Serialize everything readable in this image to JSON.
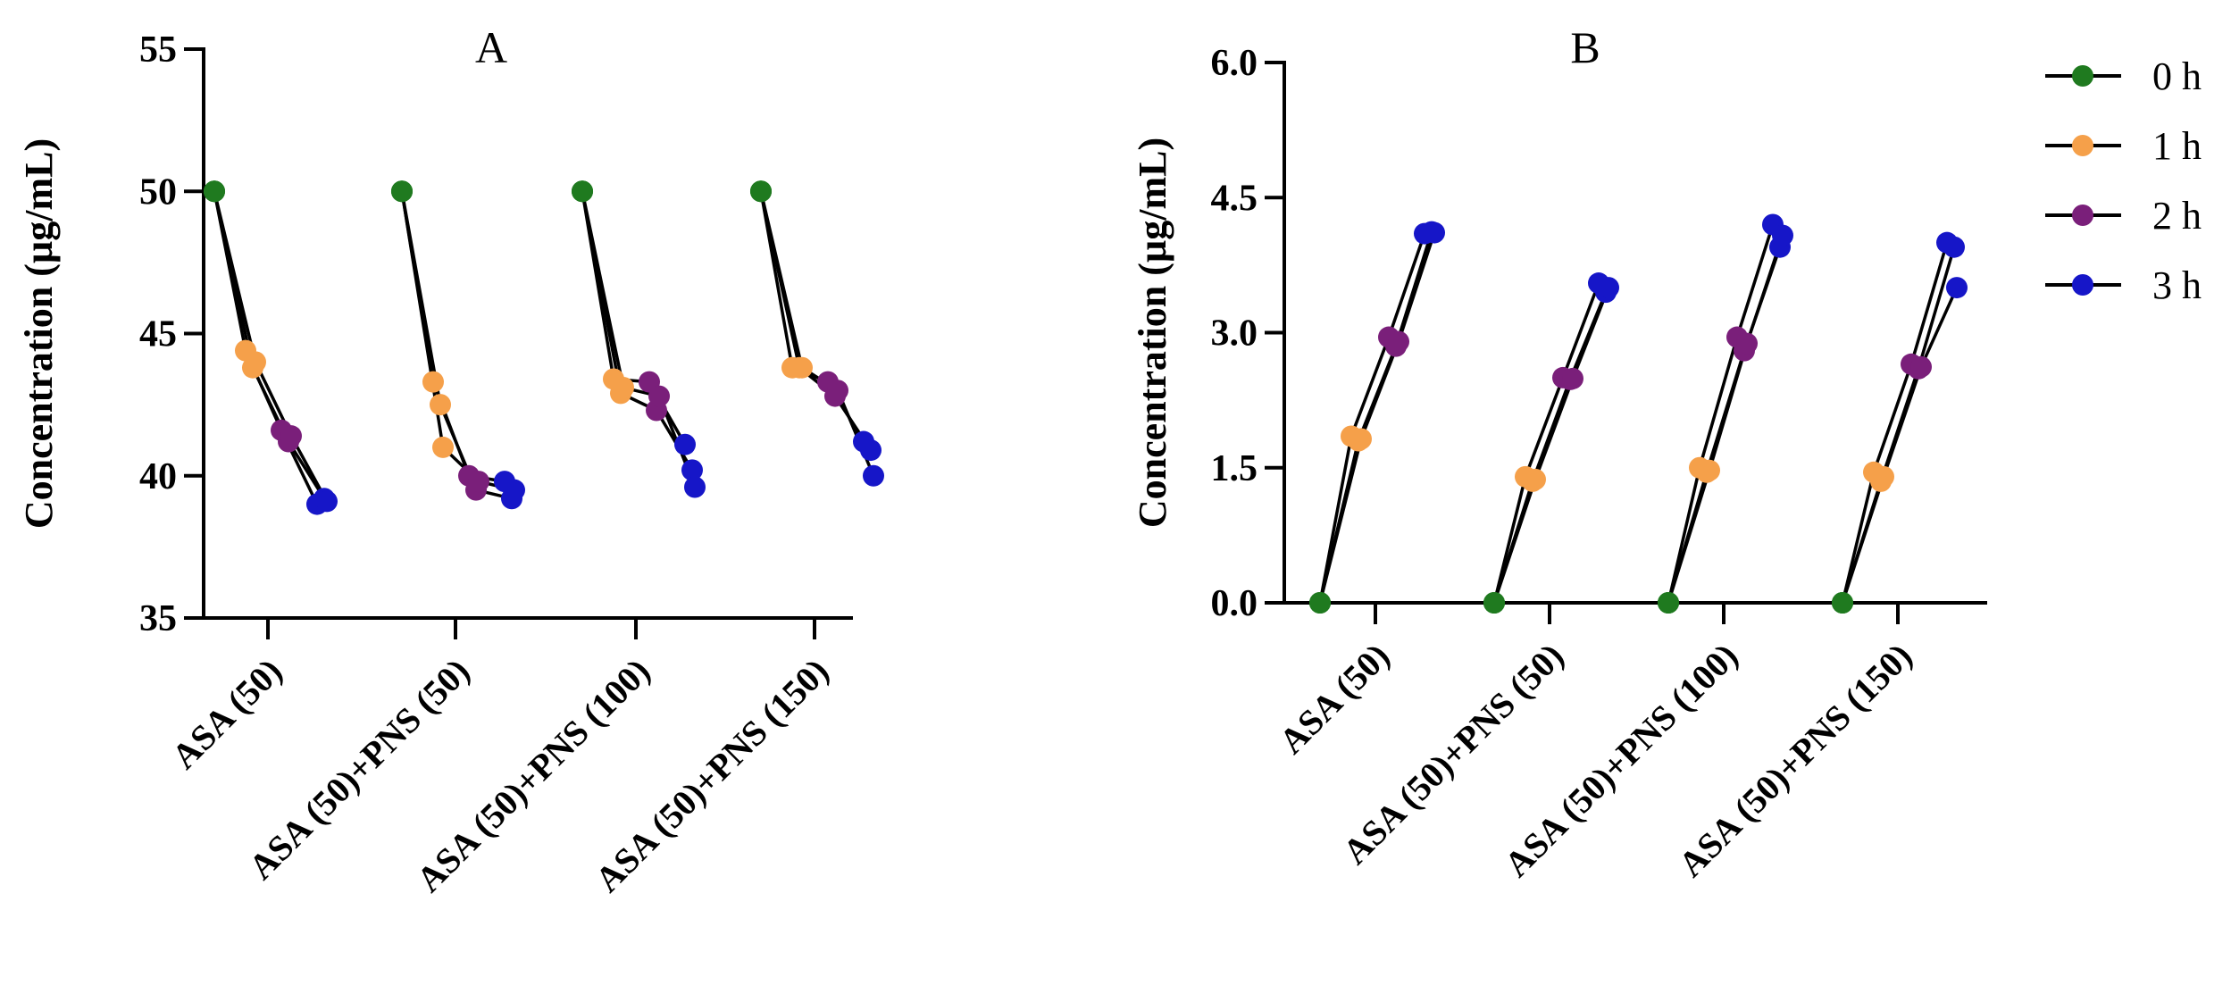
{
  "colors": {
    "0 h": "#1f7a1f",
    "1 h": "#f5a04a",
    "2 h": "#7a1f7a",
    "3 h": "#1616c8"
  },
  "legend": [
    "0 h",
    "1 h",
    "2 h",
    "3 h"
  ],
  "chart_data": [
    {
      "type": "scatter",
      "title": "A",
      "xlabel": "",
      "ylabel": "Concentration (µg/mL)",
      "ylim": [
        35,
        55
      ],
      "yticks": [
        "35",
        "40",
        "45",
        "50",
        "55"
      ],
      "categories": [
        "ASA (50)",
        "ASA (50)+PNS (50)",
        "ASA (50)+PNS (100)",
        "ASA (50)+PNS (150)"
      ],
      "series": [
        {
          "name": "0 h",
          "values": [
            [
              50,
              50,
              50
            ],
            [
              50,
              50,
              50
            ],
            [
              50,
              50,
              50
            ],
            [
              50,
              50,
              50
            ]
          ]
        },
        {
          "name": "1 h",
          "values": [
            [
              44.4,
              43.8,
              44.0
            ],
            [
              43.3,
              42.5,
              41.0
            ],
            [
              43.4,
              42.9,
              43.1
            ],
            [
              43.8,
              43.8,
              43.8
            ]
          ]
        },
        {
          "name": "2 h",
          "values": [
            [
              41.6,
              41.2,
              41.4
            ],
            [
              40.0,
              39.5,
              39.8
            ],
            [
              43.3,
              42.3,
              42.8
            ],
            [
              43.3,
              42.8,
              43.0
            ]
          ]
        },
        {
          "name": "3 h",
          "values": [
            [
              39.0,
              39.2,
              39.1
            ],
            [
              39.8,
              39.2,
              39.5
            ],
            [
              41.1,
              40.2,
              39.6
            ],
            [
              41.2,
              40.9,
              40.0
            ]
          ]
        }
      ]
    },
    {
      "type": "scatter",
      "title": "B",
      "xlabel": "",
      "ylabel": "Concentration (µg/mL)",
      "ylim": [
        0,
        6
      ],
      "yticks": [
        "0.0",
        "1.5",
        "3.0",
        "4.5",
        "6.0"
      ],
      "categories": [
        "ASA (50)",
        "ASA (50)+PNS (50)",
        "ASA (50)+PNS (100)",
        "ASA (50)+PNS (150)"
      ],
      "series": [
        {
          "name": "0 h",
          "values": [
            [
              0,
              0,
              0
            ],
            [
              0,
              0,
              0
            ],
            [
              0,
              0,
              0
            ],
            [
              0,
              0,
              0
            ]
          ]
        },
        {
          "name": "1 h",
          "values": [
            [
              1.85,
              1.8,
              1.82
            ],
            [
              1.4,
              1.35,
              1.37
            ],
            [
              1.5,
              1.45,
              1.47
            ],
            [
              1.45,
              1.35,
              1.4
            ]
          ]
        },
        {
          "name": "2 h",
          "values": [
            [
              2.95,
              2.85,
              2.9
            ],
            [
              2.5,
              2.48,
              2.49
            ],
            [
              2.95,
              2.8,
              2.88
            ],
            [
              2.65,
              2.6,
              2.62
            ]
          ]
        },
        {
          "name": "3 h",
          "values": [
            [
              4.1,
              4.12,
              4.11
            ],
            [
              3.55,
              3.45,
              3.5
            ],
            [
              4.2,
              3.95,
              4.08
            ],
            [
              4.0,
              3.95,
              3.5
            ]
          ]
        }
      ]
    }
  ]
}
